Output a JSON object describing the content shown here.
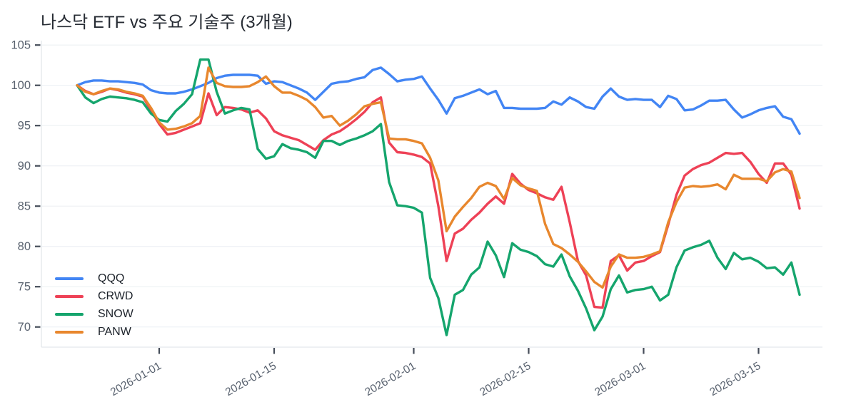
{
  "title": "나스닥 ETF vs 주요 기술주 (3개월)",
  "chart_data": {
    "type": "line",
    "title": "나스닥 ETF vs 주요 기술주 (3개월)",
    "x_description": "daily points, index 0 = 2025-12-22, index 88 = 2026-03-20",
    "n_points": 89,
    "grid": true,
    "legend_position": "inside-left-bottom",
    "ylim": [
      67.5,
      105.55
    ],
    "y_ticks": [
      70,
      75,
      80,
      85,
      90,
      95,
      100,
      105
    ],
    "x_ticks": [
      {
        "index": 10,
        "label": "2026-01-01"
      },
      {
        "index": 24,
        "label": "2026-01-15"
      },
      {
        "index": 41,
        "label": "2026-02-01"
      },
      {
        "index": 55,
        "label": "2026-02-15"
      },
      {
        "index": 69,
        "label": "2026-03-01"
      },
      {
        "index": 83,
        "label": "2026-03-15"
      }
    ],
    "series": [
      {
        "name": "QQQ",
        "color": "#4285F4",
        "values": [
          100.0,
          100.4,
          100.6,
          100.6,
          100.5,
          100.5,
          100.4,
          100.3,
          100.1,
          99.4,
          99.1,
          99.0,
          99.0,
          99.2,
          99.5,
          99.9,
          100.3,
          100.9,
          101.2,
          101.3,
          101.3,
          101.3,
          101.2,
          100.2,
          100.5,
          100.4,
          100.0,
          99.6,
          99.1,
          98.2,
          99.2,
          100.2,
          100.4,
          100.5,
          100.8,
          101.0,
          101.9,
          102.2,
          101.4,
          100.5,
          100.7,
          100.8,
          101.1,
          99.6,
          98.2,
          96.5,
          98.4,
          98.7,
          99.1,
          99.5,
          98.9,
          99.3,
          97.2,
          97.2,
          97.1,
          97.1,
          97.1,
          97.2,
          98.0,
          97.6,
          98.5,
          98.0,
          97.3,
          97.1,
          98.6,
          99.6,
          98.6,
          98.2,
          98.3,
          98.2,
          98.2,
          97.3,
          98.7,
          98.3,
          96.9,
          97.0,
          97.5,
          98.1,
          98.1,
          98.2,
          97.0,
          96.0,
          96.4,
          96.9,
          97.2,
          97.4,
          96.1,
          95.8,
          94.0
        ]
      },
      {
        "name": "CRWD",
        "color": "#EE4156",
        "values": [
          100.0,
          99.3,
          98.9,
          99.2,
          99.6,
          99.4,
          99.1,
          98.9,
          98.6,
          96.9,
          95.2,
          93.9,
          94.1,
          94.5,
          94.9,
          95.3,
          99.0,
          96.3,
          97.3,
          97.2,
          97.0,
          96.6,
          96.9,
          95.9,
          94.3,
          93.8,
          93.5,
          93.2,
          92.6,
          92.0,
          93.2,
          93.9,
          94.3,
          95.0,
          95.8,
          96.7,
          97.9,
          98.5,
          92.9,
          91.7,
          91.6,
          91.4,
          91.1,
          90.3,
          85.0,
          78.2,
          81.6,
          82.2,
          83.3,
          84.2,
          85.3,
          86.2,
          85.3,
          89.0,
          87.8,
          87.0,
          86.6,
          86.1,
          85.8,
          87.4,
          83.0,
          78.2,
          76.4,
          72.5,
          72.4,
          78.2,
          78.9,
          77.0,
          78.0,
          78.2,
          78.8,
          79.3,
          82.7,
          86.4,
          88.8,
          89.6,
          90.1,
          90.4,
          91.0,
          91.6,
          91.5,
          91.6,
          90.5,
          89.0,
          87.9,
          90.3,
          90.3,
          88.9,
          84.7
        ]
      },
      {
        "name": "SNOW",
        "color": "#15A56D",
        "values": [
          100.0,
          98.5,
          97.8,
          98.3,
          98.6,
          98.5,
          98.4,
          98.2,
          97.9,
          96.5,
          95.7,
          95.5,
          96.8,
          97.7,
          98.9,
          103.2,
          103.2,
          99.2,
          96.5,
          96.9,
          97.2,
          97.0,
          92.1,
          90.9,
          91.2,
          92.7,
          92.2,
          92.0,
          91.7,
          91.0,
          93.1,
          93.1,
          92.6,
          93.1,
          93.4,
          93.8,
          94.3,
          95.2,
          88.0,
          85.1,
          85.0,
          84.8,
          84.2,
          76.1,
          73.6,
          69.0,
          74.0,
          74.6,
          76.5,
          77.4,
          80.6,
          78.9,
          76.2,
          80.4,
          79.6,
          79.3,
          78.8,
          77.8,
          77.5,
          79.0,
          76.3,
          74.5,
          72.3,
          69.6,
          71.3,
          74.7,
          76.4,
          74.3,
          74.6,
          74.7,
          75.0,
          73.3,
          74.0,
          77.4,
          79.5,
          79.9,
          80.2,
          80.7,
          78.6,
          77.2,
          79.2,
          78.4,
          78.6,
          78.1,
          77.3,
          77.4,
          76.5,
          78.0,
          74.0
        ]
      },
      {
        "name": "PANW",
        "color": "#E8872D",
        "values": [
          100.0,
          99.2,
          98.9,
          99.3,
          99.6,
          99.5,
          99.2,
          99.0,
          98.7,
          97.2,
          95.4,
          94.5,
          94.6,
          94.9,
          95.3,
          96.2,
          102.2,
          100.3,
          99.9,
          99.8,
          99.8,
          99.9,
          100.4,
          101.1,
          99.9,
          99.1,
          99.1,
          98.7,
          98.2,
          97.3,
          96.0,
          96.2,
          95.0,
          95.6,
          96.4,
          97.4,
          97.7,
          97.9,
          93.4,
          93.3,
          93.3,
          93.1,
          92.8,
          91.0,
          88.2,
          81.9,
          83.7,
          84.9,
          86.0,
          87.4,
          87.9,
          87.5,
          85.9,
          88.5,
          87.6,
          87.2,
          86.9,
          82.8,
          80.3,
          79.8,
          79.0,
          78.1,
          76.9,
          75.6,
          74.9,
          77.5,
          79.0,
          78.6,
          78.6,
          78.7,
          79.0,
          79.4,
          83.0,
          85.5,
          87.3,
          87.5,
          87.4,
          87.5,
          87.7,
          87.1,
          88.9,
          88.4,
          88.4,
          88.4,
          88.1,
          89.2,
          89.6,
          89.3,
          86.0
        ]
      }
    ]
  }
}
